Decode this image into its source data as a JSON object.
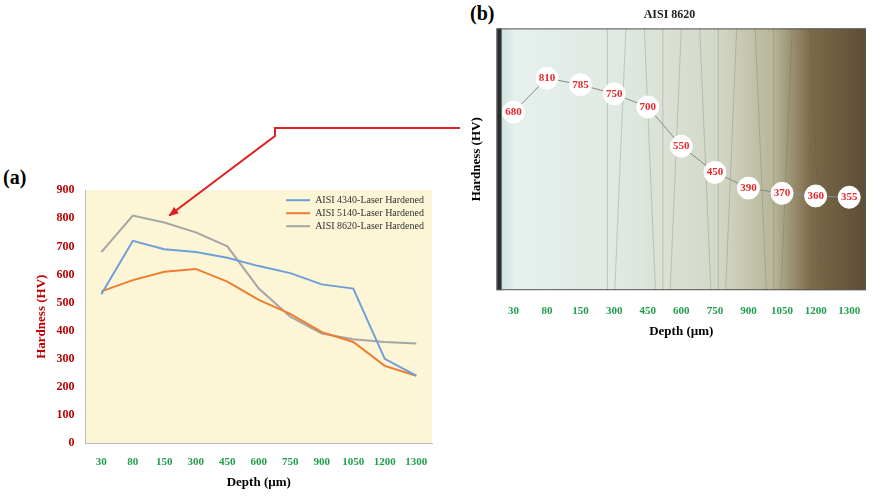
{
  "chart_data": [
    {
      "type": "line",
      "panel_label": "(a)",
      "categories": [
        30,
        80,
        150,
        300,
        450,
        600,
        750,
        900,
        1050,
        1200,
        1300
      ],
      "x_label": "Depth (µm)",
      "y_label": "Hardness (HV)",
      "series": [
        {
          "name": "AISI 4340-Laser Hardened",
          "color": "#6f9fd8",
          "values": [
            530,
            720,
            690,
            680,
            660,
            630,
            605,
            565,
            550,
            300,
            240
          ]
        },
        {
          "name": "AISI 5140-Laser Hardened",
          "color": "#ed7d31",
          "values": [
            540,
            580,
            610,
            620,
            575,
            510,
            460,
            395,
            360,
            275,
            240
          ]
        },
        {
          "name": "AISI 8620-Laser Hardened",
          "color": "#a5a5a5",
          "values": [
            680,
            810,
            785,
            750,
            700,
            550,
            450,
            390,
            370,
            360,
            355
          ]
        }
      ],
      "ylim": [
        0,
        900
      ],
      "yticks": [
        0,
        100,
        200,
        300,
        400,
        500,
        600,
        700,
        800,
        900
      ],
      "grid": false,
      "legend": "upper right"
    },
    {
      "type": "line",
      "panel_label": "(b)",
      "title": "AISI 8620",
      "categories": [
        30,
        80,
        150,
        300,
        450,
        600,
        750,
        900,
        1050,
        1200,
        1300
      ],
      "x_label": "Depth (µm)",
      "y_label": "Hardness (HV)",
      "values": [
        680,
        810,
        785,
        750,
        700,
        550,
        450,
        390,
        370,
        360,
        355
      ],
      "color": "#8a8a8a",
      "marker": "circle",
      "data_labels": true,
      "ylim": [
        0,
        1000
      ],
      "tick_labels": "x",
      "grid": false
    }
  ]
}
